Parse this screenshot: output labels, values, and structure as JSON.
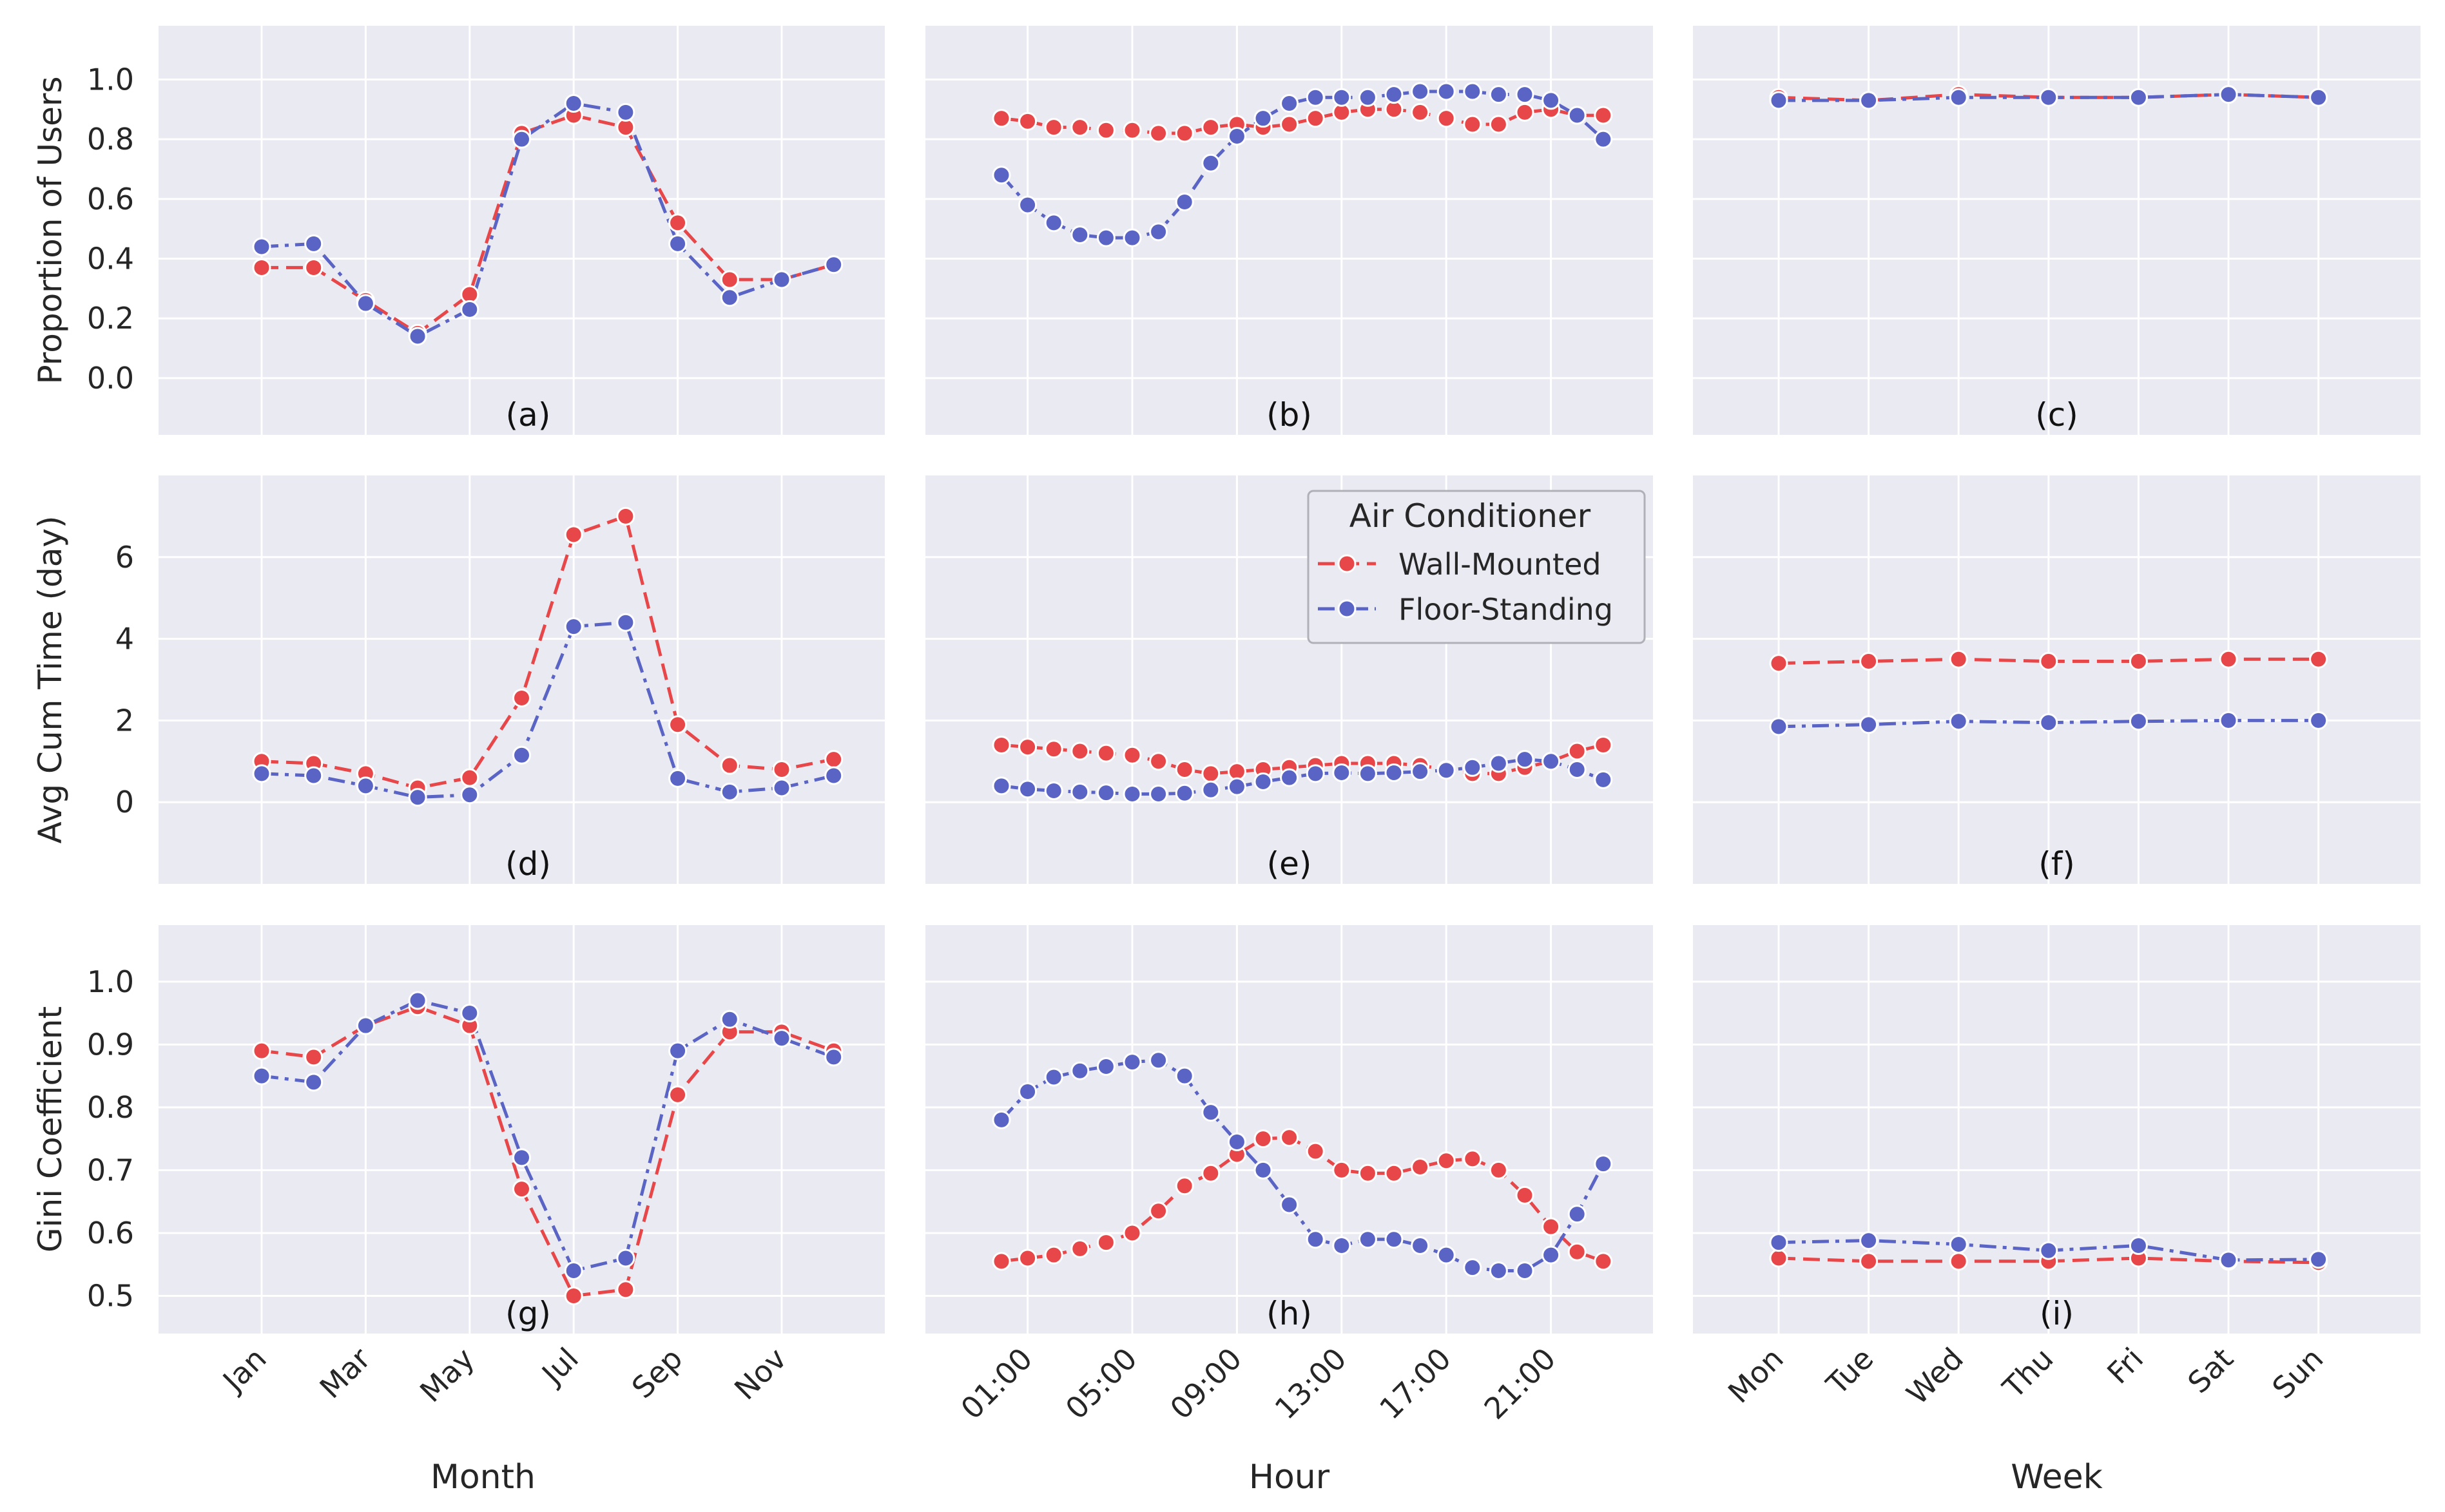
{
  "legend": {
    "title": "Air Conditioner",
    "entries": [
      {
        "label": "Wall-Mounted",
        "color": "#e8474a"
      },
      {
        "label": "Floor-Standing",
        "color": "#5a64c4"
      }
    ]
  },
  "colors": {
    "panel_bg": "#eaeaf2",
    "grid": "#ffffff",
    "wall": "#e8474a",
    "floor": "#5a64c4"
  },
  "columns": {
    "month": {
      "xlabel": "Month",
      "tick_labels": [
        "Jan",
        "Mar",
        "May",
        "Jul",
        "Sep",
        "Nov"
      ],
      "tick_positions": [
        0,
        2,
        4,
        6,
        8,
        10
      ],
      "n": 12
    },
    "hour": {
      "xlabel": "Hour",
      "tick_labels": [
        "01:00",
        "05:00",
        "09:00",
        "13:00",
        "17:00",
        "21:00"
      ],
      "tick_positions": [
        1,
        5,
        9,
        13,
        17,
        21
      ],
      "n": 24
    },
    "week": {
      "xlabel": "Week",
      "tick_labels": [
        "Mon",
        "Tue",
        "Wed",
        "Thu",
        "Fri",
        "Sat",
        "Sun"
      ],
      "tick_positions": [
        0,
        1,
        2,
        3,
        4,
        5,
        6
      ],
      "n": 7
    }
  },
  "rows": [
    {
      "ylabel": "Proportion of Users",
      "ylim": [
        -0.19,
        1.18
      ],
      "yticks": [
        0.0,
        0.2,
        0.4,
        0.6,
        0.8,
        1.0
      ],
      "ytick_labels": [
        "0.0",
        "0.2",
        "0.4",
        "0.6",
        "0.8",
        "1.0"
      ]
    },
    {
      "ylabel": "Avg Cum Time (day)",
      "ylim": [
        -2.0,
        8.0
      ],
      "yticks": [
        0,
        2,
        4,
        6
      ],
      "ytick_labels": [
        "0",
        "2",
        "4",
        "6"
      ]
    },
    {
      "ylabel": "Gini Coefficient",
      "ylim": [
        0.44,
        1.09
      ],
      "yticks": [
        0.5,
        0.6,
        0.7,
        0.8,
        0.9,
        1.0
      ],
      "ytick_labels": [
        "0.5",
        "0.6",
        "0.7",
        "0.8",
        "0.9",
        "1.0"
      ]
    }
  ],
  "chart_data": [
    {
      "type": "line",
      "panel": "(a)",
      "row": 0,
      "col": "month",
      "series": [
        {
          "name": "Wall-Mounted",
          "values": [
            0.37,
            0.37,
            0.26,
            0.15,
            0.28,
            0.82,
            0.88,
            0.84,
            0.52,
            0.33,
            0.33,
            0.38
          ]
        },
        {
          "name": "Floor-Standing",
          "values": [
            0.44,
            0.45,
            0.25,
            0.14,
            0.23,
            0.8,
            0.92,
            0.89,
            0.45,
            0.27,
            0.33,
            0.38
          ]
        }
      ]
    },
    {
      "type": "line",
      "panel": "(b)",
      "row": 0,
      "col": "hour",
      "series": [
        {
          "name": "Wall-Mounted",
          "values": [
            0.87,
            0.86,
            0.84,
            0.84,
            0.83,
            0.83,
            0.82,
            0.82,
            0.84,
            0.85,
            0.84,
            0.85,
            0.87,
            0.89,
            0.9,
            0.9,
            0.89,
            0.87,
            0.85,
            0.85,
            0.89,
            0.9,
            0.88,
            0.88
          ]
        },
        {
          "name": "Floor-Standing",
          "values": [
            0.68,
            0.58,
            0.52,
            0.48,
            0.47,
            0.47,
            0.49,
            0.59,
            0.72,
            0.81,
            0.87,
            0.92,
            0.94,
            0.94,
            0.94,
            0.95,
            0.96,
            0.96,
            0.96,
            0.95,
            0.95,
            0.93,
            0.88,
            0.8
          ]
        }
      ]
    },
    {
      "type": "line",
      "panel": "(c)",
      "row": 0,
      "col": "week",
      "series": [
        {
          "name": "Wall-Mounted",
          "values": [
            0.94,
            0.93,
            0.95,
            0.94,
            0.94,
            0.95,
            0.94
          ]
        },
        {
          "name": "Floor-Standing",
          "values": [
            0.93,
            0.93,
            0.94,
            0.94,
            0.94,
            0.95,
            0.94
          ]
        }
      ]
    },
    {
      "type": "line",
      "panel": "(d)",
      "row": 1,
      "col": "month",
      "series": [
        {
          "name": "Wall-Mounted",
          "values": [
            1.0,
            0.95,
            0.7,
            0.35,
            0.6,
            2.55,
            6.55,
            7.0,
            1.9,
            0.9,
            0.8,
            1.05
          ]
        },
        {
          "name": "Floor-Standing",
          "values": [
            0.7,
            0.65,
            0.4,
            0.12,
            0.18,
            1.15,
            4.3,
            4.4,
            0.58,
            0.25,
            0.35,
            0.65
          ]
        }
      ]
    },
    {
      "type": "line",
      "panel": "(e)",
      "row": 1,
      "col": "hour",
      "series": [
        {
          "name": "Wall-Mounted",
          "values": [
            1.4,
            1.35,
            1.3,
            1.25,
            1.2,
            1.15,
            1.0,
            0.8,
            0.7,
            0.75,
            0.8,
            0.85,
            0.9,
            0.95,
            0.95,
            0.95,
            0.9,
            0.8,
            0.7,
            0.7,
            0.85,
            1.0,
            1.25,
            1.4
          ]
        },
        {
          "name": "Floor-Standing",
          "values": [
            0.4,
            0.32,
            0.28,
            0.25,
            0.23,
            0.2,
            0.2,
            0.22,
            0.3,
            0.38,
            0.5,
            0.6,
            0.7,
            0.72,
            0.7,
            0.72,
            0.75,
            0.78,
            0.85,
            0.95,
            1.05,
            1.0,
            0.8,
            0.55
          ]
        }
      ]
    },
    {
      "type": "line",
      "panel": "(f)",
      "row": 1,
      "col": "week",
      "series": [
        {
          "name": "Wall-Mounted",
          "values": [
            3.4,
            3.45,
            3.5,
            3.45,
            3.45,
            3.5,
            3.5
          ]
        },
        {
          "name": "Floor-Standing",
          "values": [
            1.85,
            1.9,
            1.98,
            1.95,
            1.98,
            2.0,
            2.0
          ]
        }
      ]
    },
    {
      "type": "line",
      "panel": "(g)",
      "row": 2,
      "col": "month",
      "series": [
        {
          "name": "Wall-Mounted",
          "values": [
            0.89,
            0.88,
            0.93,
            0.96,
            0.93,
            0.67,
            0.5,
            0.51,
            0.82,
            0.92,
            0.92,
            0.89
          ]
        },
        {
          "name": "Floor-Standing",
          "values": [
            0.85,
            0.84,
            0.93,
            0.97,
            0.95,
            0.72,
            0.54,
            0.56,
            0.89,
            0.94,
            0.91,
            0.88
          ]
        }
      ]
    },
    {
      "type": "line",
      "panel": "(h)",
      "row": 2,
      "col": "hour",
      "series": [
        {
          "name": "Wall-Mounted",
          "values": [
            0.555,
            0.56,
            0.565,
            0.575,
            0.585,
            0.6,
            0.635,
            0.675,
            0.695,
            0.725,
            0.75,
            0.752,
            0.73,
            0.7,
            0.695,
            0.695,
            0.705,
            0.715,
            0.718,
            0.7,
            0.66,
            0.61,
            0.57,
            0.555
          ]
        },
        {
          "name": "Floor-Standing",
          "values": [
            0.78,
            0.825,
            0.848,
            0.858,
            0.865,
            0.872,
            0.875,
            0.85,
            0.792,
            0.745,
            0.7,
            0.645,
            0.59,
            0.58,
            0.59,
            0.59,
            0.58,
            0.565,
            0.545,
            0.54,
            0.54,
            0.565,
            0.63,
            0.71
          ]
        }
      ]
    },
    {
      "type": "line",
      "panel": "(i)",
      "row": 2,
      "col": "week",
      "series": [
        {
          "name": "Wall-Mounted",
          "values": [
            0.56,
            0.555,
            0.555,
            0.555,
            0.56,
            0.555,
            0.553
          ]
        },
        {
          "name": "Floor-Standing",
          "values": [
            0.585,
            0.588,
            0.582,
            0.572,
            0.58,
            0.557,
            0.558
          ]
        }
      ]
    }
  ]
}
